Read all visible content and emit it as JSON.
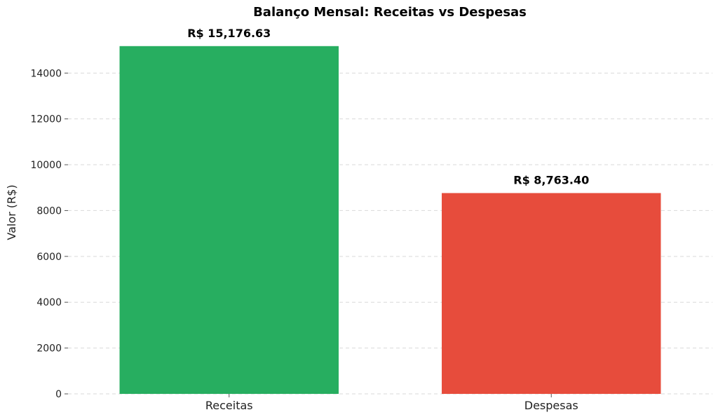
{
  "chart_data": {
    "type": "bar",
    "title": "Balanço Mensal: Receitas vs Despesas",
    "xlabel": "",
    "ylabel": "Valor (R$)",
    "categories": [
      "Receitas",
      "Despesas"
    ],
    "values": [
      15176.63,
      8763.4
    ],
    "data_labels": [
      "R$ 15,176.63",
      "R$ 8,763.40"
    ],
    "colors": [
      "#27ae60",
      "#e74c3c"
    ],
    "ylim": [
      0,
      15935
    ],
    "yticks": [
      0,
      2000,
      4000,
      6000,
      8000,
      10000,
      12000,
      14000
    ],
    "ytick_labels": [
      "0",
      "2000",
      "4000",
      "6000",
      "8000",
      "10000",
      "12000",
      "14000"
    ],
    "grid": "y-dashed",
    "legend": "none"
  }
}
